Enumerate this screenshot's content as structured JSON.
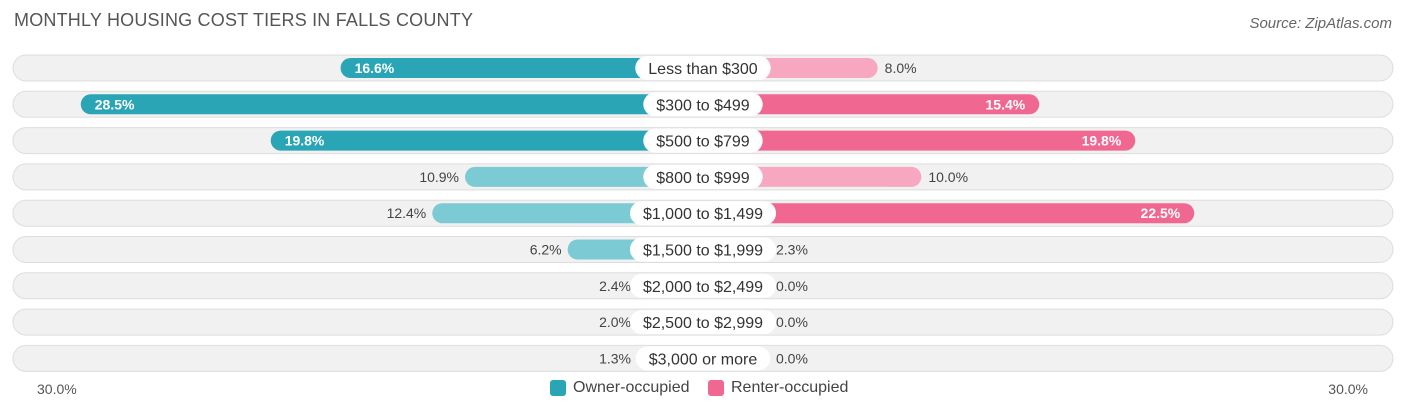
{
  "header": {
    "title": "MONTHLY HOUSING COST TIERS IN FALLS COUNTY",
    "source": "Source: ZipAtlas.com"
  },
  "colors": {
    "owner": "#2aa5b6",
    "owner_light": "#7ccbd4",
    "renter": "#f06892",
    "renter_light": "#f7a8c0",
    "row_bg": "#f1f1f1",
    "row_border": "#dddddd"
  },
  "legend": {
    "owner_label": "Owner-occupied",
    "renter_label": "Renter-occupied"
  },
  "axis": {
    "left_label": "30.0%",
    "right_label": "30.0%"
  },
  "chart_data": {
    "type": "bar",
    "orientation": "horizontal-diverging",
    "title": "MONTHLY HOUSING COST TIERS IN FALLS COUNTY",
    "xlim": [
      -30,
      30
    ],
    "categories": [
      "Less than $300",
      "$300 to $499",
      "$500 to $799",
      "$800 to $999",
      "$1,000 to $1,499",
      "$1,500 to $1,999",
      "$2,000 to $2,499",
      "$2,500 to $2,999",
      "$3,000 or more"
    ],
    "series": [
      {
        "name": "Owner-occupied",
        "values": [
          16.6,
          28.5,
          19.8,
          10.9,
          12.4,
          6.2,
          2.4,
          2.0,
          1.3
        ],
        "labels": [
          "16.6%",
          "28.5%",
          "19.8%",
          "10.9%",
          "12.4%",
          "6.2%",
          "2.4%",
          "2.0%",
          "1.3%"
        ]
      },
      {
        "name": "Renter-occupied",
        "values": [
          8.0,
          15.4,
          19.8,
          10.0,
          22.5,
          2.3,
          0.0,
          0.0,
          0.0
        ],
        "labels": [
          "8.0%",
          "15.4%",
          "19.8%",
          "10.0%",
          "22.5%",
          "2.3%",
          "0.0%",
          "0.0%",
          "0.0%"
        ]
      }
    ],
    "legend_position": "bottom-center"
  }
}
